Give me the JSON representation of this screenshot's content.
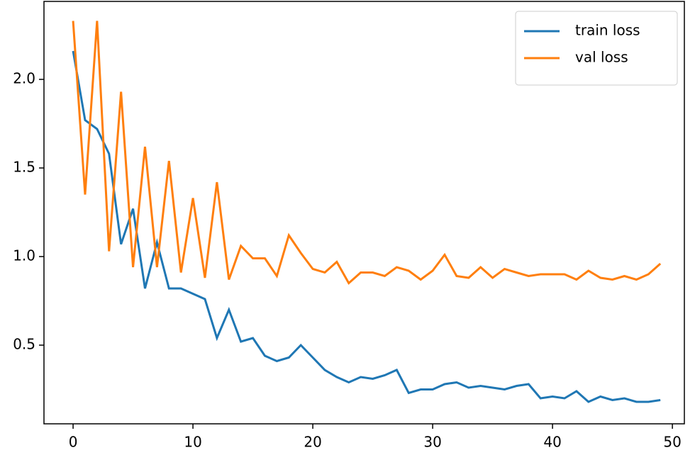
{
  "chart_data": {
    "type": "line",
    "x": [
      0,
      1,
      2,
      3,
      4,
      5,
      6,
      7,
      8,
      9,
      10,
      11,
      12,
      13,
      14,
      15,
      16,
      17,
      18,
      19,
      20,
      21,
      22,
      23,
      24,
      25,
      26,
      27,
      28,
      29,
      30,
      31,
      32,
      33,
      34,
      35,
      36,
      37,
      38,
      39,
      40,
      41,
      42,
      43,
      44,
      45,
      46,
      47,
      48,
      49
    ],
    "series": [
      {
        "name": "train loss",
        "color": "#1f77b4",
        "values": [
          2.16,
          1.77,
          1.72,
          1.58,
          1.07,
          1.27,
          0.82,
          1.08,
          0.82,
          0.82,
          0.79,
          0.76,
          0.54,
          0.7,
          0.52,
          0.54,
          0.44,
          0.41,
          0.43,
          0.5,
          0.43,
          0.36,
          0.32,
          0.29,
          0.32,
          0.31,
          0.33,
          0.36,
          0.23,
          0.25,
          0.25,
          0.28,
          0.29,
          0.26,
          0.27,
          0.26,
          0.25,
          0.27,
          0.28,
          0.2,
          0.21,
          0.2,
          0.24,
          0.18,
          0.21,
          0.19,
          0.2,
          0.18,
          0.18,
          0.19
        ]
      },
      {
        "name": "val loss",
        "color": "#ff7f0e",
        "values": [
          2.33,
          1.35,
          2.33,
          1.03,
          1.93,
          0.94,
          1.62,
          0.94,
          1.54,
          0.91,
          1.33,
          0.88,
          1.42,
          0.87,
          1.06,
          0.99,
          0.99,
          0.89,
          1.12,
          1.02,
          0.93,
          0.91,
          0.97,
          0.85,
          0.91,
          0.91,
          0.89,
          0.94,
          0.92,
          0.87,
          0.92,
          1.01,
          0.89,
          0.88,
          0.94,
          0.88,
          0.93,
          0.91,
          0.89,
          0.9,
          0.9,
          0.9,
          0.87,
          0.92,
          0.88,
          0.87,
          0.89,
          0.87,
          0.9,
          0.96
        ]
      }
    ],
    "xlim": [
      -2.43,
      51.0
    ],
    "xticks": [
      0,
      10,
      20,
      30,
      40,
      50
    ],
    "ylim": [
      0.056,
      2.44
    ],
    "yticks": [
      0.5,
      {
        "value": 1.0,
        "label": "1.0"
      },
      1.5,
      {
        "value": 2.0,
        "label": "2.0"
      }
    ],
    "legend": "upper right"
  }
}
